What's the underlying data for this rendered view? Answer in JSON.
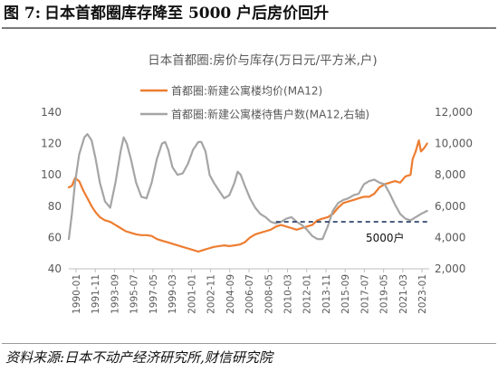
{
  "figure": {
    "number": "图 7:",
    "title": "日本首都圈库存降至 5000 户后房价回升",
    "source": "资料来源:日本不动产经济研究所,财信研究院"
  },
  "chart_data": {
    "type": "line",
    "title": "日本首都圈:房价与库存(万日元/平方米,户)",
    "legend_position": "top",
    "x_tick_labels": [
      "1990-01",
      "1991-11",
      "1993-09",
      "1995-07",
      "1997-05",
      "1999-03",
      "2001-01",
      "2002-11",
      "2004-09",
      "2006-07",
      "2008-05",
      "2010-03",
      "2012-01",
      "2013-11",
      "2015-09",
      "2017-07",
      "2019-05",
      "2021-03",
      "2023-01"
    ],
    "x_range": [
      1990.0,
      2024.8
    ],
    "y_left": {
      "ticks": [
        40,
        60,
        80,
        100,
        120,
        140
      ],
      "range": [
        40,
        140
      ]
    },
    "y_right": {
      "ticks": [
        "2,000",
        "4,000",
        "6,000",
        "8,000",
        "10,000",
        "12,000"
      ],
      "range": [
        2000,
        12000
      ]
    },
    "grid": false,
    "series": [
      {
        "name": "首都圈:新建公寓楼均价(MA12)",
        "axis": "left",
        "color": "#ED7D31",
        "points": [
          [
            1990.0,
            92
          ],
          [
            1990.3,
            93
          ],
          [
            1990.6,
            98
          ],
          [
            1991.0,
            96
          ],
          [
            1991.4,
            90
          ],
          [
            1991.8,
            85
          ],
          [
            1992.2,
            80
          ],
          [
            1992.6,
            76
          ],
          [
            1993.0,
            73
          ],
          [
            1993.5,
            71
          ],
          [
            1994.0,
            70
          ],
          [
            1994.5,
            68
          ],
          [
            1995.0,
            66
          ],
          [
            1995.5,
            64
          ],
          [
            1996.0,
            63
          ],
          [
            1996.5,
            62
          ],
          [
            1997.0,
            61.5
          ],
          [
            1997.5,
            61.5
          ],
          [
            1998.0,
            61
          ],
          [
            1998.5,
            59
          ],
          [
            1999.0,
            58
          ],
          [
            1999.5,
            57
          ],
          [
            2000.0,
            56
          ],
          [
            2000.5,
            55
          ],
          [
            2001.0,
            54
          ],
          [
            2001.5,
            53
          ],
          [
            2002.0,
            52
          ],
          [
            2002.5,
            51
          ],
          [
            2003.0,
            52
          ],
          [
            2003.5,
            53
          ],
          [
            2004.0,
            54
          ],
          [
            2004.5,
            54.5
          ],
          [
            2005.0,
            55
          ],
          [
            2005.5,
            54.5
          ],
          [
            2006.0,
            55
          ],
          [
            2006.5,
            55.5
          ],
          [
            2007.0,
            57
          ],
          [
            2007.5,
            60
          ],
          [
            2008.0,
            62
          ],
          [
            2008.5,
            63
          ],
          [
            2009.0,
            64
          ],
          [
            2009.5,
            65
          ],
          [
            2010.0,
            67
          ],
          [
            2010.5,
            68
          ],
          [
            2011.0,
            67
          ],
          [
            2011.5,
            66
          ],
          [
            2012.0,
            65
          ],
          [
            2012.5,
            66
          ],
          [
            2013.0,
            67
          ],
          [
            2013.5,
            68
          ],
          [
            2014.0,
            71
          ],
          [
            2014.5,
            72
          ],
          [
            2015.0,
            73
          ],
          [
            2015.5,
            75
          ],
          [
            2016.0,
            79
          ],
          [
            2016.5,
            82
          ],
          [
            2017.0,
            83
          ],
          [
            2017.5,
            84
          ],
          [
            2018.0,
            85
          ],
          [
            2018.5,
            86
          ],
          [
            2019.0,
            86
          ],
          [
            2019.5,
            88
          ],
          [
            2020.0,
            92
          ],
          [
            2020.5,
            94
          ],
          [
            2021.0,
            95
          ],
          [
            2021.5,
            96
          ],
          [
            2022.0,
            95
          ],
          [
            2022.5,
            99
          ],
          [
            2023.0,
            100
          ],
          [
            2023.2,
            110
          ],
          [
            2023.5,
            115
          ],
          [
            2023.8,
            122
          ],
          [
            2024.0,
            115
          ],
          [
            2024.3,
            117
          ],
          [
            2024.6,
            120
          ]
        ]
      },
      {
        "name": "首都圈:新建公寓楼待售户数(MA12,右轴)",
        "axis": "right",
        "color": "#A5A5A5",
        "points": [
          [
            1990.0,
            3900
          ],
          [
            1990.3,
            5500
          ],
          [
            1990.6,
            7500
          ],
          [
            1991.0,
            9300
          ],
          [
            1991.5,
            10400
          ],
          [
            1991.8,
            10600
          ],
          [
            1992.2,
            10200
          ],
          [
            1992.6,
            9000
          ],
          [
            1993.0,
            7500
          ],
          [
            1993.5,
            6300
          ],
          [
            1994.0,
            5900
          ],
          [
            1994.5,
            7500
          ],
          [
            1995.0,
            9500
          ],
          [
            1995.3,
            10400
          ],
          [
            1995.6,
            10000
          ],
          [
            1996.0,
            9000
          ],
          [
            1996.5,
            7500
          ],
          [
            1997.0,
            6600
          ],
          [
            1997.5,
            6500
          ],
          [
            1998.0,
            7500
          ],
          [
            1998.5,
            9000
          ],
          [
            1999.0,
            10000
          ],
          [
            1999.3,
            10100
          ],
          [
            1999.6,
            9600
          ],
          [
            2000.0,
            8500
          ],
          [
            2000.5,
            8000
          ],
          [
            2001.0,
            8100
          ],
          [
            2001.5,
            8700
          ],
          [
            2002.0,
            9600
          ],
          [
            2002.5,
            10100
          ],
          [
            2002.8,
            10100
          ],
          [
            2003.2,
            9500
          ],
          [
            2003.6,
            8000
          ],
          [
            2004.0,
            7500
          ],
          [
            2004.5,
            7000
          ],
          [
            2005.0,
            6500
          ],
          [
            2005.5,
            6700
          ],
          [
            2006.0,
            7500
          ],
          [
            2006.3,
            8200
          ],
          [
            2006.6,
            8000
          ],
          [
            2007.0,
            7300
          ],
          [
            2007.5,
            6500
          ],
          [
            2008.0,
            5900
          ],
          [
            2008.5,
            5500
          ],
          [
            2009.0,
            5300
          ],
          [
            2009.5,
            5000
          ],
          [
            2010.0,
            4900
          ],
          [
            2010.5,
            5000
          ],
          [
            2011.0,
            5200
          ],
          [
            2011.5,
            5300
          ],
          [
            2012.0,
            5000
          ],
          [
            2012.5,
            4800
          ],
          [
            2013.0,
            4500
          ],
          [
            2013.5,
            4100
          ],
          [
            2014.0,
            3900
          ],
          [
            2014.5,
            3900
          ],
          [
            2015.0,
            4700
          ],
          [
            2015.5,
            5700
          ],
          [
            2016.0,
            6200
          ],
          [
            2016.5,
            6400
          ],
          [
            2017.0,
            6500
          ],
          [
            2017.5,
            6700
          ],
          [
            2018.0,
            6800
          ],
          [
            2018.5,
            7400
          ],
          [
            2019.0,
            7600
          ],
          [
            2019.5,
            7700
          ],
          [
            2020.0,
            7500
          ],
          [
            2020.5,
            7400
          ],
          [
            2021.0,
            6800
          ],
          [
            2021.5,
            6100
          ],
          [
            2022.0,
            5500
          ],
          [
            2022.5,
            5200
          ],
          [
            2023.0,
            5100
          ],
          [
            2023.5,
            5300
          ],
          [
            2024.0,
            5500
          ],
          [
            2024.6,
            5700
          ]
        ]
      }
    ],
    "reference_line": {
      "axis": "right",
      "value": 5000,
      "from": 2010.0,
      "to": 2024.8,
      "style": "dashed",
      "color": "#1F3864",
      "label": "5000户"
    }
  }
}
